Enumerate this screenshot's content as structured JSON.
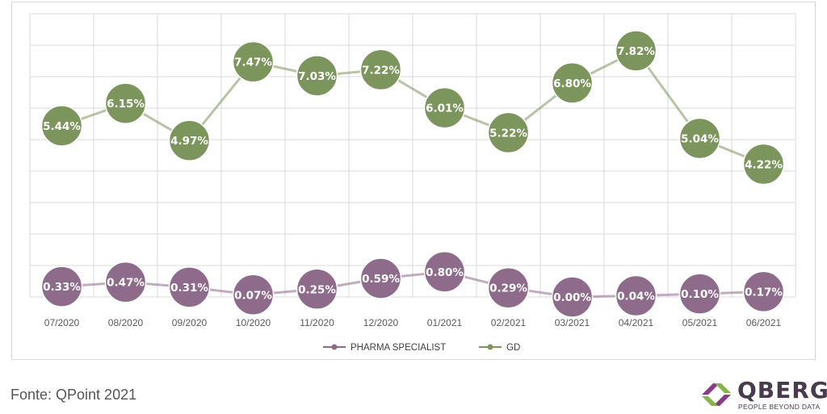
{
  "chart_data": {
    "type": "line",
    "categories": [
      "07/2020",
      "08/2020",
      "09/2020",
      "10/2020",
      "11/2020",
      "12/2020",
      "01/2021",
      "02/2021",
      "03/2021",
      "04/2021",
      "05/2021",
      "06/2021"
    ],
    "series": [
      {
        "name": "PHARMA SPECIALIST",
        "color": "#8e6a8b",
        "values": [
          0.33,
          0.47,
          0.31,
          0.07,
          0.25,
          0.59,
          0.8,
          0.29,
          0.0,
          0.04,
          0.1,
          0.17
        ],
        "labels": [
          "0.33%",
          "0.47%",
          "0.31%",
          "0.07%",
          "0.25%",
          "0.59%",
          "0.80%",
          "0.29%",
          "0.00%",
          "0.04%",
          "0.10%",
          "0.17%"
        ]
      },
      {
        "name": "GD",
        "color": "#7b955c",
        "values": [
          5.44,
          6.15,
          4.97,
          7.47,
          7.03,
          7.22,
          6.01,
          5.22,
          6.8,
          7.82,
          5.04,
          4.22
        ],
        "labels": [
          "5.44%",
          "6.15%",
          "4.97%",
          "7.47%",
          "7.03%",
          "7.22%",
          "6.01%",
          "5.22%",
          "6.80%",
          "7.82%",
          "5.04%",
          "4.22%"
        ]
      }
    ],
    "ylim": [
      0,
      9
    ],
    "grid": true,
    "legend_position": "bottom",
    "title": "",
    "xlabel": "",
    "ylabel": ""
  },
  "source_note": "Fonte: QPoint 2021",
  "brand": {
    "name": "QBERG",
    "tagline": "PEOPLE BEYOND DATA",
    "colors": [
      "#8a3a86",
      "#86b544",
      "#4a3a4e"
    ]
  }
}
